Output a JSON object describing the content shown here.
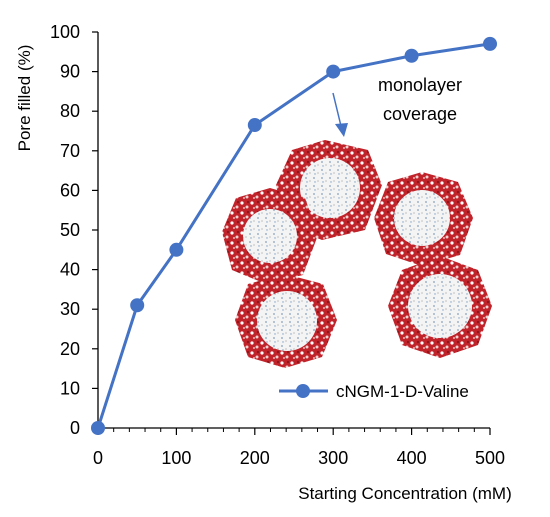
{
  "chart_data": {
    "type": "line",
    "xlabel": "Starting Concentration (mM)",
    "ylabel": "Pore filled (%)",
    "xlim": [
      0,
      500
    ],
    "ylim": [
      0,
      100
    ],
    "xticks": [
      0,
      100,
      200,
      300,
      400,
      500
    ],
    "yticks": [
      0,
      10,
      20,
      30,
      40,
      50,
      60,
      70,
      80,
      90,
      100
    ],
    "grid": false,
    "legend_position": "bottom-right",
    "series": [
      {
        "name": "cNGM-1-D-Valine",
        "color": "#4472C4",
        "marker": "circle",
        "x": [
          0,
          50,
          100,
          200,
          300,
          400,
          500
        ],
        "y": [
          0,
          31,
          45,
          76.5,
          90,
          94,
          97
        ]
      }
    ],
    "annotations": [
      {
        "text_lines": [
          "monolayer",
          "coverage"
        ],
        "target_x": 300,
        "target_y": 90
      }
    ],
    "inset_image": "molecular-pore-structures-illustration"
  }
}
